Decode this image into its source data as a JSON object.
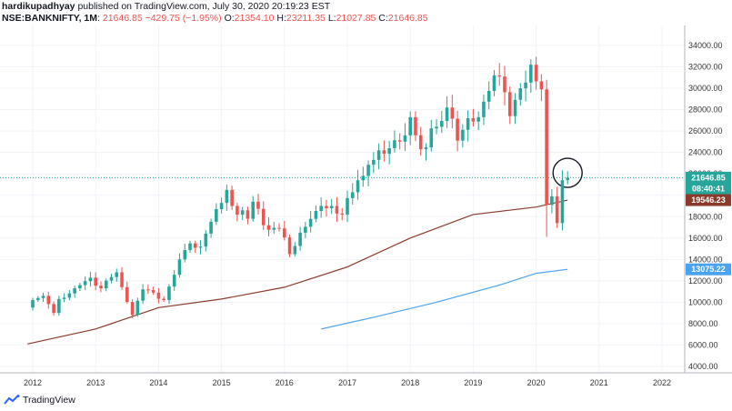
{
  "header": {
    "publisher": "hardikupadhyay",
    "published_text": "published on TradingView.com, July 30, 2020 20:19:23 EST",
    "symbol": "NSE:BANKNIFTY, 1M",
    "last": "21646.85",
    "change": "−429.75 (−1.95%)",
    "o_label": "O:",
    "o_value": "21354.10",
    "h_label": "H:",
    "h_value": "23211.35",
    "l_label": "L:",
    "l_value": "21027.85",
    "c_label": "C:",
    "c_value": "21646.85"
  },
  "footer": {
    "brand": "TradingView"
  },
  "colors": {
    "up": "#26a69a",
    "down": "#ef5350",
    "ma_slow": "#4aa3f0",
    "ma_fast": "#8b3a2a",
    "price_line": "#26a69a"
  },
  "chart_data": {
    "type": "candlestick",
    "y_ticks": [
      "4000.00",
      "6000.00",
      "8000.00",
      "10000.00",
      "12000.00",
      "14000.00",
      "16000.00",
      "18000.00",
      "20000.00",
      "22000.00",
      "24000.00",
      "26000.00",
      "28000.00",
      "30000.00",
      "32000.00",
      "34000.00"
    ],
    "x_ticks": [
      "2012",
      "2013",
      "2014",
      "2015",
      "2016",
      "2017",
      "2018",
      "2019",
      "2020",
      "2021",
      "2022"
    ],
    "ylim": [
      3000,
      35500
    ],
    "price_badges": [
      {
        "label": "21646.85",
        "value": 21646.85,
        "color": "#26a69a"
      },
      {
        "label": "08:40:41",
        "value": 20600,
        "color": "#26a69a"
      },
      {
        "label": "19546.23",
        "value": 19546.23,
        "color": "#8b3a2a"
      },
      {
        "label": "13075.22",
        "value": 13075.22,
        "color": "#4aa3f0"
      }
    ],
    "anchors": [
      [
        "2011-12",
        9500
      ],
      [
        "2012-01",
        10200
      ],
      [
        "2012-03",
        10600
      ],
      [
        "2012-05",
        9000
      ],
      [
        "2012-06",
        10300
      ],
      [
        "2012-09",
        11300
      ],
      [
        "2012-12",
        12300
      ],
      [
        "2013-02",
        11300
      ],
      [
        "2013-05",
        12800
      ],
      [
        "2013-08",
        8800
      ],
      [
        "2013-10",
        11200
      ],
      [
        "2013-12",
        10900
      ],
      [
        "2014-02",
        10200
      ],
      [
        "2014-05",
        14000
      ],
      [
        "2014-07",
        15500
      ],
      [
        "2014-09",
        15200
      ],
      [
        "2014-12",
        18700
      ],
      [
        "2015-02",
        20500
      ],
      [
        "2015-03",
        19000
      ],
      [
        "2015-06",
        17800
      ],
      [
        "2015-07",
        19400
      ],
      [
        "2015-09",
        17200
      ],
      [
        "2015-12",
        16900
      ],
      [
        "2016-02",
        14500
      ],
      [
        "2016-04",
        16500
      ],
      [
        "2016-08",
        19000
      ],
      [
        "2016-10",
        19000
      ],
      [
        "2016-12",
        18200
      ],
      [
        "2017-03",
        21400
      ],
      [
        "2017-07",
        24200
      ],
      [
        "2017-09",
        24400
      ],
      [
        "2017-12",
        25600
      ],
      [
        "2018-01",
        27300
      ],
      [
        "2018-03",
        24300
      ],
      [
        "2018-06",
        26400
      ],
      [
        "2018-08",
        28200
      ],
      [
        "2018-10",
        25100
      ],
      [
        "2018-12",
        27200
      ],
      [
        "2019-02",
        27300
      ],
      [
        "2019-05",
        31200
      ],
      [
        "2019-06",
        31100
      ],
      [
        "2019-08",
        27400
      ],
      [
        "2019-10",
        30000
      ],
      [
        "2019-12",
        32200
      ],
      [
        "2020-01",
        30650
      ],
      [
        "2020-02",
        29900
      ],
      [
        "2020-03",
        19100
      ],
      [
        "2020-04",
        19900
      ],
      [
        "2020-05",
        17400
      ],
      [
        "2020-06",
        21400
      ],
      [
        "2020-07",
        21647
      ]
    ],
    "ma_fast": [
      [
        "2011-12",
        6100
      ],
      [
        "2013-01",
        7500
      ],
      [
        "2014-01",
        9500
      ],
      [
        "2015-01",
        10300
      ],
      [
        "2016-01",
        11400
      ],
      [
        "2017-01",
        13300
      ],
      [
        "2018-01",
        16000
      ],
      [
        "2019-01",
        18200
      ],
      [
        "2020-01",
        18900
      ],
      [
        "2020-07",
        19546
      ]
    ],
    "ma_slow": [
      [
        "2016-08",
        7500
      ],
      [
        "2017-06",
        8600
      ],
      [
        "2018-06",
        10000
      ],
      [
        "2019-06",
        11600
      ],
      [
        "2020-01",
        12700
      ],
      [
        "2020-07",
        13075
      ]
    ],
    "annotation": {
      "type": "circle",
      "date": "2020-07",
      "value": 22100
    }
  }
}
